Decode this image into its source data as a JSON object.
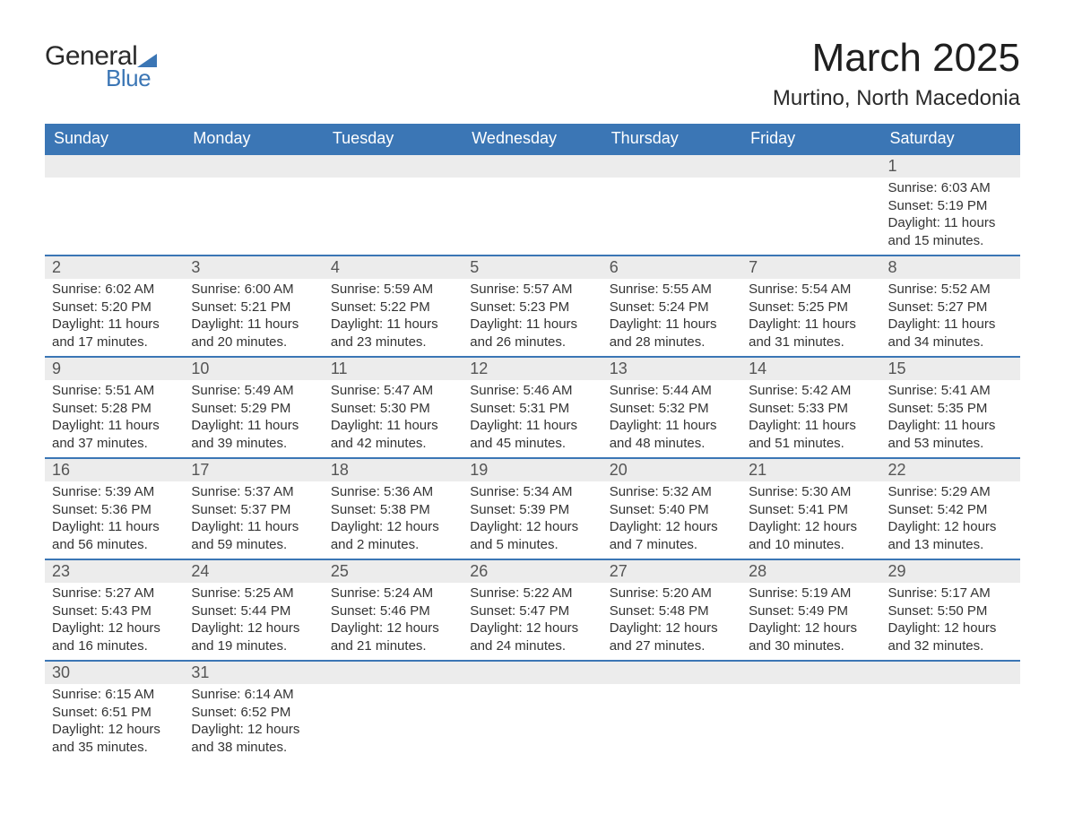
{
  "logo": {
    "text1": "General",
    "text2": "Blue",
    "accent_color": "#3b76b5"
  },
  "title": "March 2025",
  "location": "Murtino, North Macedonia",
  "header_bg": "#3b76b5",
  "daynum_bg": "#ececec",
  "row_border": "#3b76b5",
  "days_of_week": [
    "Sunday",
    "Monday",
    "Tuesday",
    "Wednesday",
    "Thursday",
    "Friday",
    "Saturday"
  ],
  "weeks": [
    {
      "nums": [
        "",
        "",
        "",
        "",
        "",
        "",
        "1"
      ],
      "details": [
        {
          "sunrise": "",
          "sunset": "",
          "daylight1": "",
          "daylight2": ""
        },
        {
          "sunrise": "",
          "sunset": "",
          "daylight1": "",
          "daylight2": ""
        },
        {
          "sunrise": "",
          "sunset": "",
          "daylight1": "",
          "daylight2": ""
        },
        {
          "sunrise": "",
          "sunset": "",
          "daylight1": "",
          "daylight2": ""
        },
        {
          "sunrise": "",
          "sunset": "",
          "daylight1": "",
          "daylight2": ""
        },
        {
          "sunrise": "",
          "sunset": "",
          "daylight1": "",
          "daylight2": ""
        },
        {
          "sunrise": "Sunrise: 6:03 AM",
          "sunset": "Sunset: 5:19 PM",
          "daylight1": "Daylight: 11 hours",
          "daylight2": "and 15 minutes."
        }
      ]
    },
    {
      "nums": [
        "2",
        "3",
        "4",
        "5",
        "6",
        "7",
        "8"
      ],
      "details": [
        {
          "sunrise": "Sunrise: 6:02 AM",
          "sunset": "Sunset: 5:20 PM",
          "daylight1": "Daylight: 11 hours",
          "daylight2": "and 17 minutes."
        },
        {
          "sunrise": "Sunrise: 6:00 AM",
          "sunset": "Sunset: 5:21 PM",
          "daylight1": "Daylight: 11 hours",
          "daylight2": "and 20 minutes."
        },
        {
          "sunrise": "Sunrise: 5:59 AM",
          "sunset": "Sunset: 5:22 PM",
          "daylight1": "Daylight: 11 hours",
          "daylight2": "and 23 minutes."
        },
        {
          "sunrise": "Sunrise: 5:57 AM",
          "sunset": "Sunset: 5:23 PM",
          "daylight1": "Daylight: 11 hours",
          "daylight2": "and 26 minutes."
        },
        {
          "sunrise": "Sunrise: 5:55 AM",
          "sunset": "Sunset: 5:24 PM",
          "daylight1": "Daylight: 11 hours",
          "daylight2": "and 28 minutes."
        },
        {
          "sunrise": "Sunrise: 5:54 AM",
          "sunset": "Sunset: 5:25 PM",
          "daylight1": "Daylight: 11 hours",
          "daylight2": "and 31 minutes."
        },
        {
          "sunrise": "Sunrise: 5:52 AM",
          "sunset": "Sunset: 5:27 PM",
          "daylight1": "Daylight: 11 hours",
          "daylight2": "and 34 minutes."
        }
      ]
    },
    {
      "nums": [
        "9",
        "10",
        "11",
        "12",
        "13",
        "14",
        "15"
      ],
      "details": [
        {
          "sunrise": "Sunrise: 5:51 AM",
          "sunset": "Sunset: 5:28 PM",
          "daylight1": "Daylight: 11 hours",
          "daylight2": "and 37 minutes."
        },
        {
          "sunrise": "Sunrise: 5:49 AM",
          "sunset": "Sunset: 5:29 PM",
          "daylight1": "Daylight: 11 hours",
          "daylight2": "and 39 minutes."
        },
        {
          "sunrise": "Sunrise: 5:47 AM",
          "sunset": "Sunset: 5:30 PM",
          "daylight1": "Daylight: 11 hours",
          "daylight2": "and 42 minutes."
        },
        {
          "sunrise": "Sunrise: 5:46 AM",
          "sunset": "Sunset: 5:31 PM",
          "daylight1": "Daylight: 11 hours",
          "daylight2": "and 45 minutes."
        },
        {
          "sunrise": "Sunrise: 5:44 AM",
          "sunset": "Sunset: 5:32 PM",
          "daylight1": "Daylight: 11 hours",
          "daylight2": "and 48 minutes."
        },
        {
          "sunrise": "Sunrise: 5:42 AM",
          "sunset": "Sunset: 5:33 PM",
          "daylight1": "Daylight: 11 hours",
          "daylight2": "and 51 minutes."
        },
        {
          "sunrise": "Sunrise: 5:41 AM",
          "sunset": "Sunset: 5:35 PM",
          "daylight1": "Daylight: 11 hours",
          "daylight2": "and 53 minutes."
        }
      ]
    },
    {
      "nums": [
        "16",
        "17",
        "18",
        "19",
        "20",
        "21",
        "22"
      ],
      "details": [
        {
          "sunrise": "Sunrise: 5:39 AM",
          "sunset": "Sunset: 5:36 PM",
          "daylight1": "Daylight: 11 hours",
          "daylight2": "and 56 minutes."
        },
        {
          "sunrise": "Sunrise: 5:37 AM",
          "sunset": "Sunset: 5:37 PM",
          "daylight1": "Daylight: 11 hours",
          "daylight2": "and 59 minutes."
        },
        {
          "sunrise": "Sunrise: 5:36 AM",
          "sunset": "Sunset: 5:38 PM",
          "daylight1": "Daylight: 12 hours",
          "daylight2": "and 2 minutes."
        },
        {
          "sunrise": "Sunrise: 5:34 AM",
          "sunset": "Sunset: 5:39 PM",
          "daylight1": "Daylight: 12 hours",
          "daylight2": "and 5 minutes."
        },
        {
          "sunrise": "Sunrise: 5:32 AM",
          "sunset": "Sunset: 5:40 PM",
          "daylight1": "Daylight: 12 hours",
          "daylight2": "and 7 minutes."
        },
        {
          "sunrise": "Sunrise: 5:30 AM",
          "sunset": "Sunset: 5:41 PM",
          "daylight1": "Daylight: 12 hours",
          "daylight2": "and 10 minutes."
        },
        {
          "sunrise": "Sunrise: 5:29 AM",
          "sunset": "Sunset: 5:42 PM",
          "daylight1": "Daylight: 12 hours",
          "daylight2": "and 13 minutes."
        }
      ]
    },
    {
      "nums": [
        "23",
        "24",
        "25",
        "26",
        "27",
        "28",
        "29"
      ],
      "details": [
        {
          "sunrise": "Sunrise: 5:27 AM",
          "sunset": "Sunset: 5:43 PM",
          "daylight1": "Daylight: 12 hours",
          "daylight2": "and 16 minutes."
        },
        {
          "sunrise": "Sunrise: 5:25 AM",
          "sunset": "Sunset: 5:44 PM",
          "daylight1": "Daylight: 12 hours",
          "daylight2": "and 19 minutes."
        },
        {
          "sunrise": "Sunrise: 5:24 AM",
          "sunset": "Sunset: 5:46 PM",
          "daylight1": "Daylight: 12 hours",
          "daylight2": "and 21 minutes."
        },
        {
          "sunrise": "Sunrise: 5:22 AM",
          "sunset": "Sunset: 5:47 PM",
          "daylight1": "Daylight: 12 hours",
          "daylight2": "and 24 minutes."
        },
        {
          "sunrise": "Sunrise: 5:20 AM",
          "sunset": "Sunset: 5:48 PM",
          "daylight1": "Daylight: 12 hours",
          "daylight2": "and 27 minutes."
        },
        {
          "sunrise": "Sunrise: 5:19 AM",
          "sunset": "Sunset: 5:49 PM",
          "daylight1": "Daylight: 12 hours",
          "daylight2": "and 30 minutes."
        },
        {
          "sunrise": "Sunrise: 5:17 AM",
          "sunset": "Sunset: 5:50 PM",
          "daylight1": "Daylight: 12 hours",
          "daylight2": "and 32 minutes."
        }
      ]
    },
    {
      "nums": [
        "30",
        "31",
        "",
        "",
        "",
        "",
        ""
      ],
      "details": [
        {
          "sunrise": "Sunrise: 6:15 AM",
          "sunset": "Sunset: 6:51 PM",
          "daylight1": "Daylight: 12 hours",
          "daylight2": "and 35 minutes."
        },
        {
          "sunrise": "Sunrise: 6:14 AM",
          "sunset": "Sunset: 6:52 PM",
          "daylight1": "Daylight: 12 hours",
          "daylight2": "and 38 minutes."
        },
        {
          "sunrise": "",
          "sunset": "",
          "daylight1": "",
          "daylight2": ""
        },
        {
          "sunrise": "",
          "sunset": "",
          "daylight1": "",
          "daylight2": ""
        },
        {
          "sunrise": "",
          "sunset": "",
          "daylight1": "",
          "daylight2": ""
        },
        {
          "sunrise": "",
          "sunset": "",
          "daylight1": "",
          "daylight2": ""
        },
        {
          "sunrise": "",
          "sunset": "",
          "daylight1": "",
          "daylight2": ""
        }
      ]
    }
  ]
}
